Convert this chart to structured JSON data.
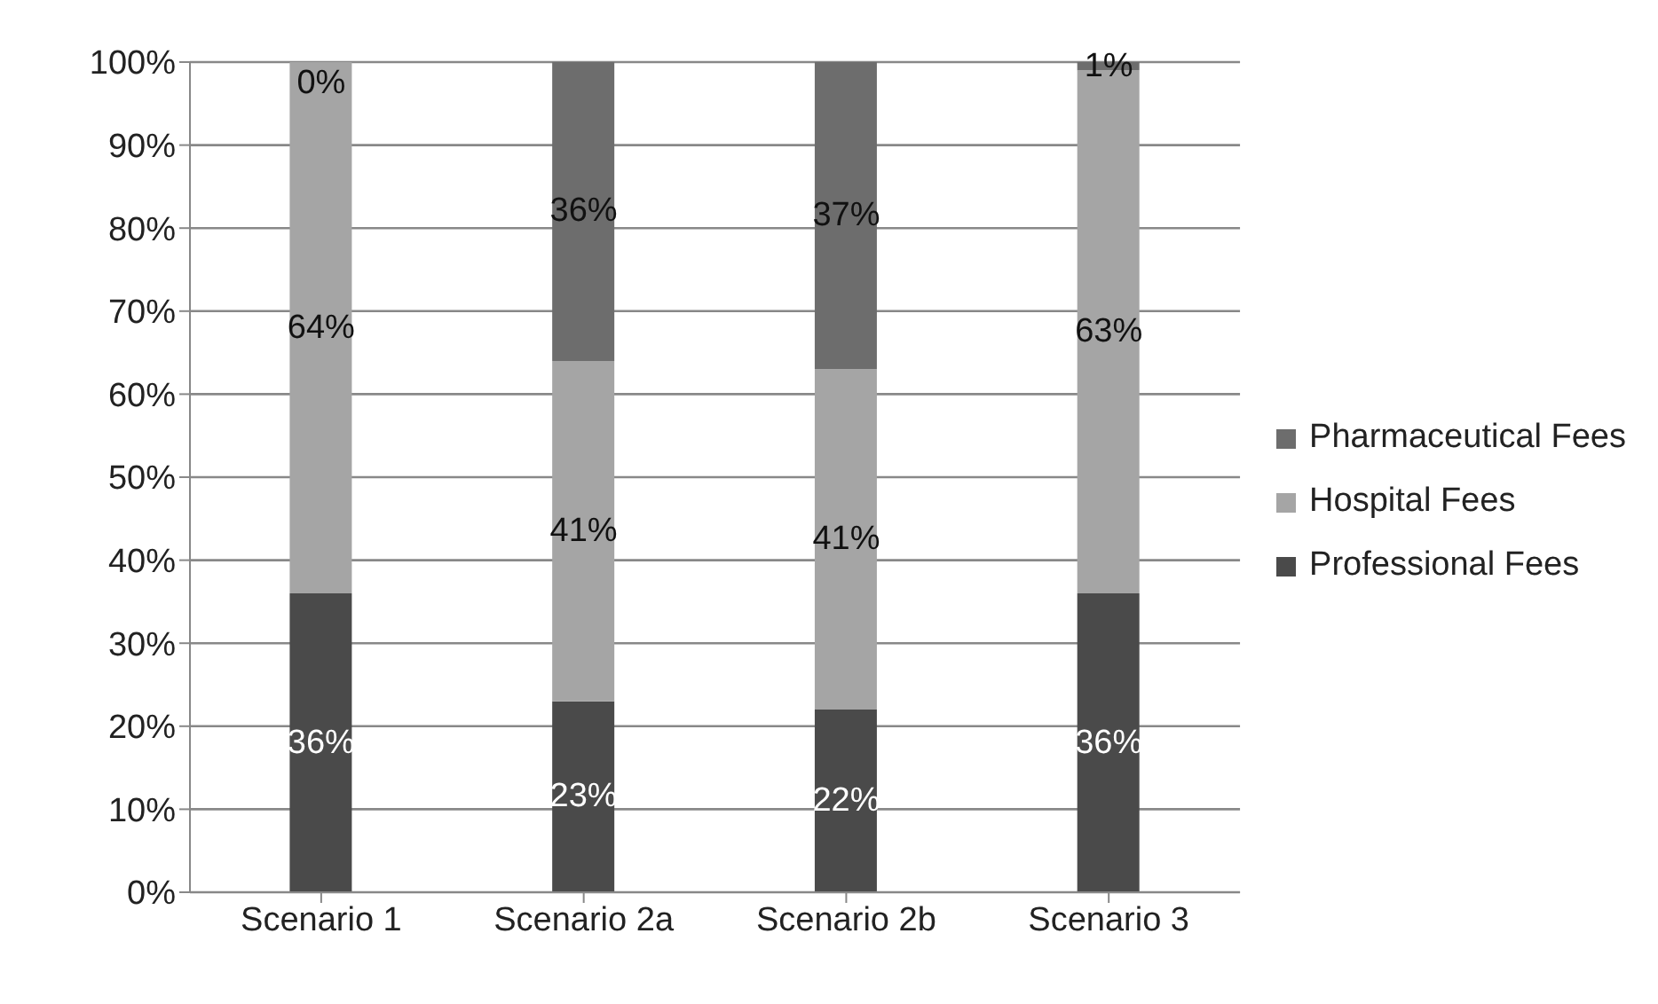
{
  "chart_data": {
    "type": "bar",
    "stacked": true,
    "categories": [
      "Scenario 1",
      "Scenario 2a",
      "Scenario 2b",
      "Scenario 3"
    ],
    "series": [
      {
        "name": "Professional Fees",
        "color": "#4a4a4a",
        "values": [
          36,
          23,
          22,
          36
        ],
        "value_labels": [
          "36%",
          "23%",
          "22%",
          "36%"
        ]
      },
      {
        "name": "Hospital Fees",
        "color": "#a5a5a5",
        "values": [
          64,
          41,
          41,
          63
        ],
        "value_labels": [
          "64%",
          "41%",
          "41%",
          "63%"
        ]
      },
      {
        "name": "Pharmaceutical Fees",
        "color": "#6d6d6d",
        "values": [
          0,
          36,
          37,
          1
        ],
        "value_labels": [
          "0%",
          "36%",
          "37%",
          "1%"
        ]
      }
    ],
    "ylim": [
      0,
      100
    ],
    "yticks": [
      {
        "value": 0,
        "label": "0%"
      },
      {
        "value": 10,
        "label": "10%"
      },
      {
        "value": 20,
        "label": "20%"
      },
      {
        "value": 30,
        "label": "30%"
      },
      {
        "value": 40,
        "label": "40%"
      },
      {
        "value": 50,
        "label": "50%"
      },
      {
        "value": 60,
        "label": "60%"
      },
      {
        "value": 70,
        "label": "70%"
      },
      {
        "value": 80,
        "label": "80%"
      },
      {
        "value": 90,
        "label": "90%"
      },
      {
        "value": 100,
        "label": "100%"
      }
    ],
    "grid": "y",
    "legend": "right"
  }
}
